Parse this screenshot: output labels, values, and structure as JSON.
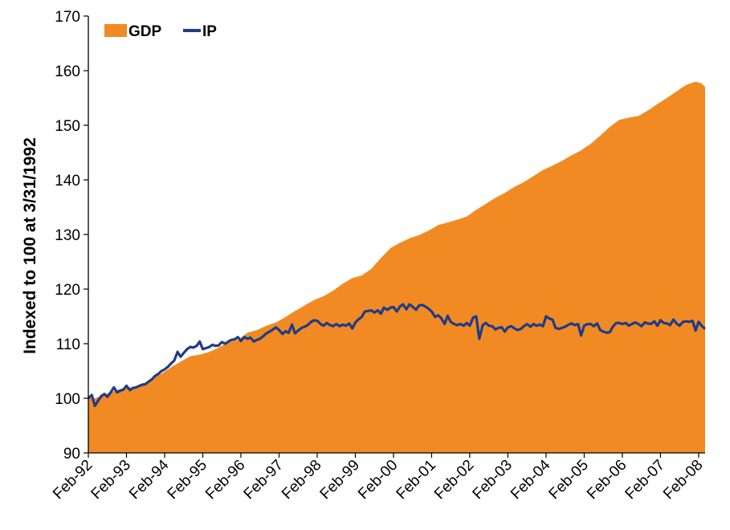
{
  "chart_data": {
    "type": "area",
    "title": "",
    "xlabel": "",
    "ylabel": "Indexed to 100 at 3/31/1992",
    "ylim": [
      90,
      170
    ],
    "yticks": [
      90,
      100,
      110,
      120,
      130,
      140,
      150,
      160,
      170
    ],
    "xticks": [
      "Feb-92",
      "Feb-93",
      "Feb-94",
      "Feb-95",
      "Feb-96",
      "Feb-97",
      "Feb-98",
      "Feb-99",
      "Feb-00",
      "Feb-01",
      "Feb-02",
      "Feb-03",
      "Feb-04",
      "Feb-05",
      "Feb-06",
      "Feb-07",
      "Feb-08"
    ],
    "xrange_years": [
      1992.08,
      2008.25
    ],
    "grid": false,
    "legend_position": "top-left",
    "series": [
      {
        "name": "GDP",
        "style": "area",
        "color": "#F28A24",
        "points": [
          [
            1992.08,
            100.0
          ],
          [
            1992.25,
            100.0
          ],
          [
            1992.5,
            100.6
          ],
          [
            1992.75,
            101.3
          ],
          [
            1993.0,
            101.9
          ],
          [
            1993.25,
            102.0
          ],
          [
            1993.5,
            102.5
          ],
          [
            1993.75,
            103.7
          ],
          [
            1994.0,
            104.5
          ],
          [
            1994.25,
            105.7
          ],
          [
            1994.5,
            106.7
          ],
          [
            1994.75,
            107.7
          ],
          [
            1995.0,
            108.0
          ],
          [
            1995.25,
            108.5
          ],
          [
            1995.5,
            109.3
          ],
          [
            1995.75,
            110.3
          ],
          [
            1996.0,
            110.7
          ],
          [
            1996.25,
            112.0
          ],
          [
            1996.5,
            112.5
          ],
          [
            1996.75,
            113.3
          ],
          [
            1997.0,
            113.9
          ],
          [
            1997.25,
            114.9
          ],
          [
            1997.5,
            116.0
          ],
          [
            1997.75,
            117.0
          ],
          [
            1998.0,
            118.0
          ],
          [
            1998.25,
            118.7
          ],
          [
            1998.5,
            119.7
          ],
          [
            1998.75,
            121.0
          ],
          [
            1999.0,
            122.0
          ],
          [
            1999.25,
            122.5
          ],
          [
            1999.5,
            123.7
          ],
          [
            1999.75,
            125.7
          ],
          [
            2000.0,
            127.5
          ],
          [
            2000.25,
            128.5
          ],
          [
            2000.5,
            129.3
          ],
          [
            2000.75,
            129.9
          ],
          [
            2001.0,
            130.7
          ],
          [
            2001.25,
            131.7
          ],
          [
            2001.5,
            132.2
          ],
          [
            2001.75,
            132.7
          ],
          [
            2002.0,
            133.3
          ],
          [
            2002.25,
            134.5
          ],
          [
            2002.5,
            135.6
          ],
          [
            2002.75,
            136.7
          ],
          [
            2003.0,
            137.6
          ],
          [
            2003.25,
            138.7
          ],
          [
            2003.5,
            139.6
          ],
          [
            2003.75,
            140.7
          ],
          [
            2004.0,
            141.8
          ],
          [
            2004.25,
            142.6
          ],
          [
            2004.5,
            143.5
          ],
          [
            2004.75,
            144.5
          ],
          [
            2005.0,
            145.4
          ],
          [
            2005.25,
            146.6
          ],
          [
            2005.5,
            148.1
          ],
          [
            2005.75,
            149.7
          ],
          [
            2006.0,
            151.0
          ],
          [
            2006.25,
            151.4
          ],
          [
            2006.5,
            151.7
          ],
          [
            2006.75,
            152.7
          ],
          [
            2007.0,
            153.9
          ],
          [
            2007.25,
            155.0
          ],
          [
            2007.5,
            156.2
          ],
          [
            2007.75,
            157.4
          ],
          [
            2008.0,
            158.0
          ],
          [
            2008.15,
            157.7
          ],
          [
            2008.25,
            157.0
          ]
        ]
      },
      {
        "name": "IP",
        "style": "line",
        "color": "#1F3C88",
        "points": [
          [
            1992.08,
            100.0
          ],
          [
            1992.17,
            100.6
          ],
          [
            1992.25,
            98.6
          ],
          [
            1992.33,
            99.5
          ],
          [
            1992.42,
            100.4
          ],
          [
            1992.5,
            100.8
          ],
          [
            1992.58,
            100.3
          ],
          [
            1992.67,
            101.1
          ],
          [
            1992.75,
            102.0
          ],
          [
            1992.83,
            101.1
          ],
          [
            1992.92,
            101.4
          ],
          [
            1993.0,
            101.6
          ],
          [
            1993.08,
            102.3
          ],
          [
            1993.17,
            101.5
          ],
          [
            1993.25,
            101.9
          ],
          [
            1993.33,
            102.0
          ],
          [
            1993.42,
            102.3
          ],
          [
            1993.5,
            102.5
          ],
          [
            1993.58,
            102.6
          ],
          [
            1993.67,
            103.1
          ],
          [
            1993.75,
            103.5
          ],
          [
            1993.83,
            104.1
          ],
          [
            1993.92,
            104.5
          ],
          [
            1994.0,
            105.0
          ],
          [
            1994.08,
            105.3
          ],
          [
            1994.17,
            105.8
          ],
          [
            1994.25,
            106.4
          ],
          [
            1994.33,
            106.9
          ],
          [
            1994.42,
            108.5
          ],
          [
            1994.5,
            107.6
          ],
          [
            1994.58,
            108.3
          ],
          [
            1994.67,
            109.0
          ],
          [
            1994.75,
            109.4
          ],
          [
            1994.83,
            109.3
          ],
          [
            1994.92,
            109.6
          ],
          [
            1995.0,
            110.4
          ],
          [
            1995.08,
            109.0
          ],
          [
            1995.17,
            109.2
          ],
          [
            1995.25,
            109.4
          ],
          [
            1995.33,
            109.8
          ],
          [
            1995.42,
            109.6
          ],
          [
            1995.5,
            109.7
          ],
          [
            1995.58,
            110.3
          ],
          [
            1995.67,
            110.0
          ],
          [
            1995.75,
            110.4
          ],
          [
            1995.83,
            110.7
          ],
          [
            1995.92,
            110.8
          ],
          [
            1996.0,
            111.2
          ],
          [
            1996.08,
            110.5
          ],
          [
            1996.17,
            111.2
          ],
          [
            1996.25,
            110.9
          ],
          [
            1996.33,
            111.1
          ],
          [
            1996.42,
            110.4
          ],
          [
            1996.5,
            110.7
          ],
          [
            1996.58,
            110.9
          ],
          [
            1996.67,
            111.4
          ],
          [
            1996.75,
            111.9
          ],
          [
            1996.83,
            112.2
          ],
          [
            1996.92,
            112.6
          ],
          [
            1997.0,
            113.0
          ],
          [
            1997.08,
            112.5
          ],
          [
            1997.17,
            111.8
          ],
          [
            1997.25,
            112.3
          ],
          [
            1997.33,
            112.0
          ],
          [
            1997.42,
            113.5
          ],
          [
            1997.5,
            111.9
          ],
          [
            1997.58,
            112.4
          ],
          [
            1997.67,
            112.9
          ],
          [
            1997.75,
            113.1
          ],
          [
            1997.83,
            113.4
          ],
          [
            1997.92,
            114.0
          ],
          [
            1998.0,
            114.3
          ],
          [
            1998.08,
            114.2
          ],
          [
            1998.17,
            113.6
          ],
          [
            1998.25,
            113.3
          ],
          [
            1998.33,
            113.8
          ],
          [
            1998.42,
            113.4
          ],
          [
            1998.5,
            113.2
          ],
          [
            1998.58,
            113.6
          ],
          [
            1998.67,
            113.2
          ],
          [
            1998.75,
            113.5
          ],
          [
            1998.83,
            113.3
          ],
          [
            1998.92,
            113.7
          ],
          [
            1999.0,
            112.8
          ],
          [
            1999.08,
            113.9
          ],
          [
            1999.17,
            114.5
          ],
          [
            1999.25,
            114.9
          ],
          [
            1999.33,
            115.9
          ],
          [
            1999.42,
            116.0
          ],
          [
            1999.5,
            116.1
          ],
          [
            1999.58,
            115.7
          ],
          [
            1999.67,
            116.1
          ],
          [
            1999.75,
            115.5
          ],
          [
            1999.83,
            116.6
          ],
          [
            1999.92,
            116.2
          ],
          [
            2000.0,
            116.6
          ],
          [
            2000.08,
            116.7
          ],
          [
            2000.17,
            115.9
          ],
          [
            2000.25,
            116.8
          ],
          [
            2000.33,
            117.2
          ],
          [
            2000.42,
            116.3
          ],
          [
            2000.5,
            117.2
          ],
          [
            2000.58,
            116.8
          ],
          [
            2000.67,
            116.2
          ],
          [
            2000.75,
            117.0
          ],
          [
            2000.83,
            117.1
          ],
          [
            2000.92,
            116.8
          ],
          [
            2001.0,
            116.4
          ],
          [
            2001.08,
            115.9
          ],
          [
            2001.17,
            114.9
          ],
          [
            2001.25,
            115.2
          ],
          [
            2001.33,
            114.7
          ],
          [
            2001.42,
            113.6
          ],
          [
            2001.5,
            115.1
          ],
          [
            2001.58,
            114.0
          ],
          [
            2001.67,
            113.6
          ],
          [
            2001.75,
            113.4
          ],
          [
            2001.83,
            113.6
          ],
          [
            2001.92,
            113.3
          ],
          [
            2002.0,
            113.8
          ],
          [
            2002.08,
            113.3
          ],
          [
            2002.17,
            114.8
          ],
          [
            2002.25,
            115.0
          ],
          [
            2002.33,
            110.9
          ],
          [
            2002.42,
            113.4
          ],
          [
            2002.5,
            113.8
          ],
          [
            2002.58,
            113.3
          ],
          [
            2002.67,
            113.2
          ],
          [
            2002.75,
            112.6
          ],
          [
            2002.83,
            112.9
          ],
          [
            2002.92,
            113.0
          ],
          [
            2003.0,
            112.2
          ],
          [
            2003.08,
            113.0
          ],
          [
            2003.17,
            113.2
          ],
          [
            2003.25,
            112.8
          ],
          [
            2003.33,
            112.5
          ],
          [
            2003.42,
            112.7
          ],
          [
            2003.5,
            113.2
          ],
          [
            2003.58,
            113.6
          ],
          [
            2003.67,
            113.1
          ],
          [
            2003.75,
            113.6
          ],
          [
            2003.83,
            113.3
          ],
          [
            2003.92,
            113.5
          ],
          [
            2004.0,
            113.2
          ],
          [
            2004.08,
            115.0
          ],
          [
            2004.17,
            114.6
          ],
          [
            2004.25,
            114.4
          ],
          [
            2004.33,
            112.9
          ],
          [
            2004.42,
            112.7
          ],
          [
            2004.5,
            112.9
          ],
          [
            2004.58,
            113.1
          ],
          [
            2004.67,
            113.5
          ],
          [
            2004.75,
            113.7
          ],
          [
            2004.83,
            113.4
          ],
          [
            2004.92,
            113.6
          ],
          [
            2005.0,
            111.5
          ],
          [
            2005.08,
            113.3
          ],
          [
            2005.17,
            113.6
          ],
          [
            2005.25,
            113.6
          ],
          [
            2005.33,
            113.2
          ],
          [
            2005.42,
            113.7
          ],
          [
            2005.5,
            112.5
          ],
          [
            2005.58,
            112.2
          ],
          [
            2005.67,
            112.0
          ],
          [
            2005.75,
            112.1
          ],
          [
            2005.83,
            113.1
          ],
          [
            2005.92,
            113.8
          ],
          [
            2006.0,
            113.8
          ],
          [
            2006.08,
            113.6
          ],
          [
            2006.17,
            113.8
          ],
          [
            2006.25,
            113.3
          ],
          [
            2006.33,
            113.6
          ],
          [
            2006.42,
            113.9
          ],
          [
            2006.5,
            113.6
          ],
          [
            2006.58,
            113.2
          ],
          [
            2006.67,
            113.9
          ],
          [
            2006.75,
            113.7
          ],
          [
            2006.83,
            113.6
          ],
          [
            2006.92,
            114.1
          ],
          [
            2007.0,
            113.3
          ],
          [
            2007.08,
            114.3
          ],
          [
            2007.17,
            113.8
          ],
          [
            2007.25,
            113.7
          ],
          [
            2007.33,
            113.4
          ],
          [
            2007.42,
            114.4
          ],
          [
            2007.5,
            113.7
          ],
          [
            2007.58,
            113.3
          ],
          [
            2007.67,
            114.0
          ],
          [
            2007.75,
            114.1
          ],
          [
            2007.83,
            114.0
          ],
          [
            2007.92,
            114.2
          ],
          [
            2008.0,
            112.4
          ],
          [
            2008.08,
            114.0
          ],
          [
            2008.17,
            113.2
          ],
          [
            2008.25,
            112.7
          ]
        ]
      }
    ]
  }
}
